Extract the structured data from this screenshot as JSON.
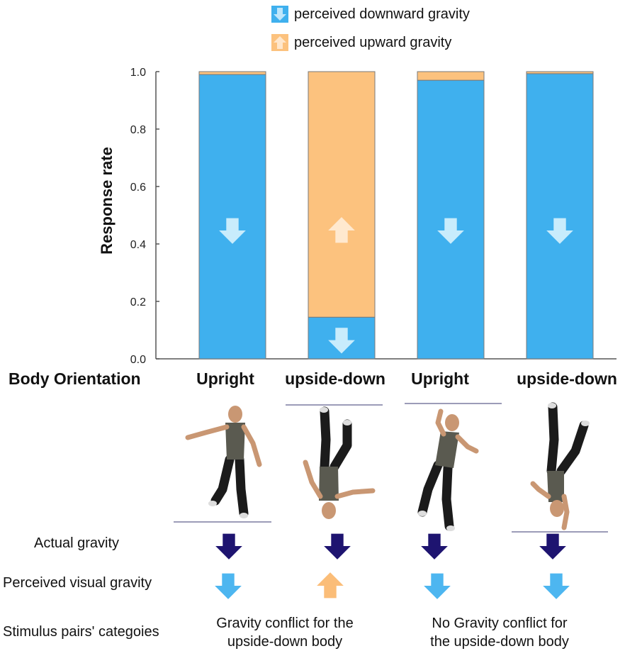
{
  "chart_data": {
    "type": "bar",
    "stacked": true,
    "categories": [
      "Upright",
      "upside-down",
      "Upright",
      "upside-down"
    ],
    "series": [
      {
        "name": "perceived downward gravity",
        "color": "#3FB0EE",
        "values": [
          0.99,
          0.145,
          0.97,
          0.993
        ]
      },
      {
        "name": "perceived upward gravity",
        "color": "#FCC27E",
        "values": [
          0.01,
          0.855,
          0.03,
          0.007
        ]
      }
    ],
    "ylabel": "Response rate",
    "ylim": [
      0,
      1.0
    ],
    "yticks": [
      "0.0",
      "0.2",
      "0.4",
      "0.6",
      "0.8",
      "1.0"
    ],
    "bar_arrows": [
      [
        {
          "direction": "down",
          "series": "perceived downward gravity"
        }
      ],
      [
        {
          "direction": "up",
          "series": "perceived upward gravity"
        },
        {
          "direction": "down",
          "series": "perceived downward gravity"
        }
      ],
      [
        {
          "direction": "down",
          "series": "perceived downward gravity"
        }
      ],
      [
        {
          "direction": "down",
          "series": "perceived downward gravity"
        }
      ]
    ],
    "legend_position": "top"
  },
  "legend": {
    "down_label": "perceived downward gravity",
    "up_label": "perceived upward gravity"
  },
  "body_orientation": {
    "title": "Body Orientation",
    "labels": [
      "Upright",
      "upside-down",
      "Upright",
      "upside-down"
    ]
  },
  "rows": {
    "actual_gravity": "Actual gravity",
    "perceived_visual_gravity": "Perceived visual gravity",
    "stimulus_categories": "Stimulus pairs' categoies"
  },
  "actual_gravity_arrows": [
    "down",
    "down",
    "down",
    "down"
  ],
  "perceived_gravity_arrows": [
    "down",
    "up",
    "down",
    "down"
  ],
  "categories_text": {
    "conflict_line1": "Gravity conflict for the",
    "conflict_line2": "upside-down body",
    "noconflict_line1": "No Gravity conflict for",
    "noconflict_line2": "the upside-down body"
  },
  "colors": {
    "down": "#3FB0EE",
    "up": "#FCC27E",
    "actual_arrow": "#1E1470",
    "perceived_down_arrow": "#4DB6F0",
    "perceived_up_arrow": "#FBBD78",
    "ground_line": "#9C9CB8",
    "skin": "#C99773",
    "shirt": "#5A5A50",
    "pants": "#1B1B1B"
  },
  "figures": [
    {
      "pose": "upright-standing",
      "ground": "bottom"
    },
    {
      "pose": "upside-down-hanging",
      "ground": "top"
    },
    {
      "pose": "upright-leaning",
      "ground": "top"
    },
    {
      "pose": "handstand",
      "ground": "bottom"
    }
  ]
}
